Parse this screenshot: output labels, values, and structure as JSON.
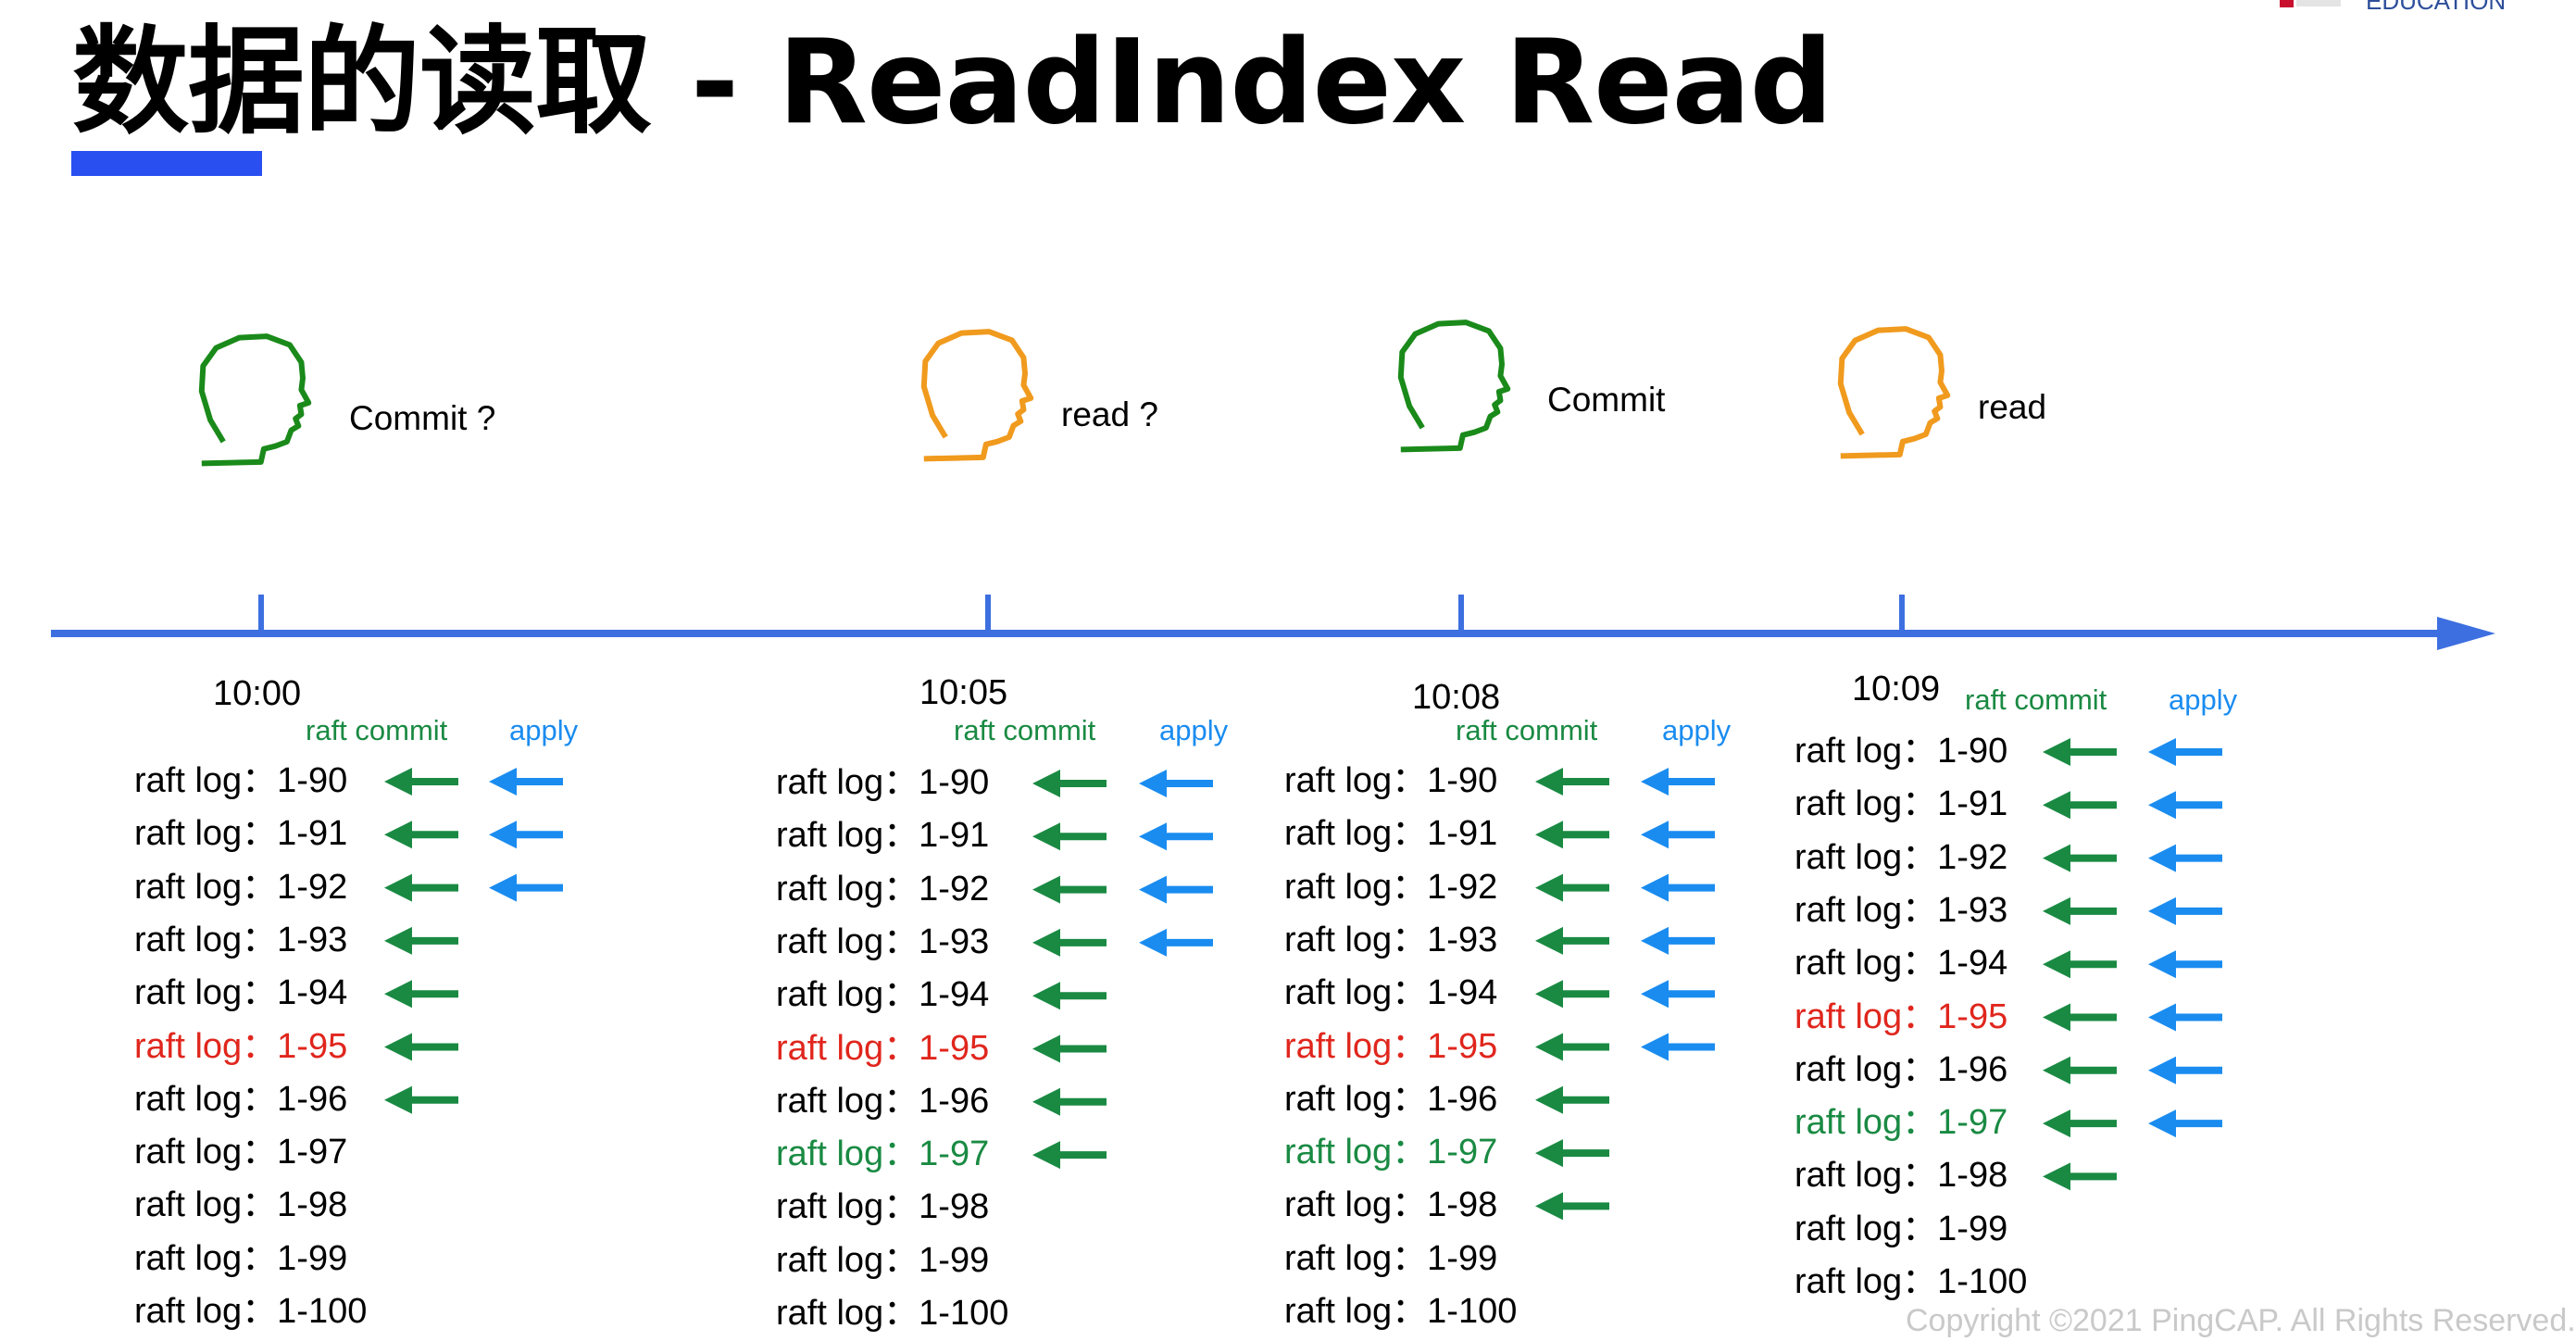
{
  "title": "数据的读取 - ReadIndex Read",
  "copyright": "Copyright ©2021 PingCAP. All Rights Reserved.",
  "colors": {
    "accent": "#2a4ff0",
    "timeline": "#3d6fe0",
    "commit_person": "#1a8a1a",
    "read_person": "#f09a1e",
    "raft_commit": "#1a8a43",
    "apply": "#1a8cf0",
    "highlight_red": "#e0261d",
    "highlight_green": "#1a8a43"
  },
  "headers": {
    "commit": "raft commit",
    "apply": "apply"
  },
  "columns": [
    {
      "time": "10:00",
      "person": {
        "caption": "Commit ?",
        "color": "green"
      },
      "logs": [
        {
          "label": "raft log：1-90",
          "commit": true,
          "apply": true,
          "color": "black"
        },
        {
          "label": "raft log：1-91",
          "commit": true,
          "apply": true,
          "color": "black"
        },
        {
          "label": "raft log：1-92",
          "commit": true,
          "apply": true,
          "color": "black"
        },
        {
          "label": "raft log：1-93",
          "commit": true,
          "apply": false,
          "color": "black"
        },
        {
          "label": "raft log：1-94",
          "commit": true,
          "apply": false,
          "color": "black"
        },
        {
          "label": "raft log：1-95",
          "commit": true,
          "apply": false,
          "color": "red"
        },
        {
          "label": "raft log：1-96",
          "commit": true,
          "apply": false,
          "color": "black"
        },
        {
          "label": "raft log：1-97",
          "commit": false,
          "apply": false,
          "color": "black"
        },
        {
          "label": "raft log：1-98",
          "commit": false,
          "apply": false,
          "color": "black"
        },
        {
          "label": "raft log：1-99",
          "commit": false,
          "apply": false,
          "color": "black"
        },
        {
          "label": "raft log：1-100",
          "commit": false,
          "apply": false,
          "color": "black"
        }
      ]
    },
    {
      "time": "10:05",
      "person": {
        "caption": "read ?",
        "color": "orange"
      },
      "logs": [
        {
          "label": "raft log：1-90",
          "commit": true,
          "apply": true,
          "color": "black"
        },
        {
          "label": "raft log：1-91",
          "commit": true,
          "apply": true,
          "color": "black"
        },
        {
          "label": "raft log：1-92",
          "commit": true,
          "apply": true,
          "color": "black"
        },
        {
          "label": "raft log：1-93",
          "commit": true,
          "apply": true,
          "color": "black"
        },
        {
          "label": "raft log：1-94",
          "commit": true,
          "apply": false,
          "color": "black"
        },
        {
          "label": "raft log：1-95",
          "commit": true,
          "apply": false,
          "color": "red"
        },
        {
          "label": "raft log：1-96",
          "commit": true,
          "apply": false,
          "color": "black"
        },
        {
          "label": "raft log：1-97",
          "commit": true,
          "apply": false,
          "color": "green"
        },
        {
          "label": "raft log：1-98",
          "commit": false,
          "apply": false,
          "color": "black"
        },
        {
          "label": "raft log：1-99",
          "commit": false,
          "apply": false,
          "color": "black"
        },
        {
          "label": "raft log：1-100",
          "commit": false,
          "apply": false,
          "color": "black"
        }
      ]
    },
    {
      "time": "10:08",
      "person": {
        "caption": "Commit",
        "color": "green"
      },
      "logs": [
        {
          "label": "raft log：1-90",
          "commit": true,
          "apply": true,
          "color": "black"
        },
        {
          "label": "raft log：1-91",
          "commit": true,
          "apply": true,
          "color": "black"
        },
        {
          "label": "raft log：1-92",
          "commit": true,
          "apply": true,
          "color": "black"
        },
        {
          "label": "raft log：1-93",
          "commit": true,
          "apply": true,
          "color": "black"
        },
        {
          "label": "raft log：1-94",
          "commit": true,
          "apply": true,
          "color": "black"
        },
        {
          "label": "raft log：1-95",
          "commit": true,
          "apply": true,
          "color": "red"
        },
        {
          "label": "raft log：1-96",
          "commit": true,
          "apply": false,
          "color": "black"
        },
        {
          "label": "raft log：1-97",
          "commit": true,
          "apply": false,
          "color": "green"
        },
        {
          "label": "raft log：1-98",
          "commit": true,
          "apply": false,
          "color": "black"
        },
        {
          "label": "raft log：1-99",
          "commit": false,
          "apply": false,
          "color": "black"
        },
        {
          "label": "raft log：1-100",
          "commit": false,
          "apply": false,
          "color": "black"
        }
      ]
    },
    {
      "time": "10:09",
      "person": {
        "caption": "read",
        "color": "orange"
      },
      "logs": [
        {
          "label": "raft log：1-90",
          "commit": true,
          "apply": true,
          "color": "black"
        },
        {
          "label": "raft log：1-91",
          "commit": true,
          "apply": true,
          "color": "black"
        },
        {
          "label": "raft log：1-92",
          "commit": true,
          "apply": true,
          "color": "black"
        },
        {
          "label": "raft log：1-93",
          "commit": true,
          "apply": true,
          "color": "black"
        },
        {
          "label": "raft log：1-94",
          "commit": true,
          "apply": true,
          "color": "black"
        },
        {
          "label": "raft log：1-95",
          "commit": true,
          "apply": true,
          "color": "red"
        },
        {
          "label": "raft log：1-96",
          "commit": true,
          "apply": true,
          "color": "black"
        },
        {
          "label": "raft log：1-97",
          "commit": true,
          "apply": true,
          "color": "green"
        },
        {
          "label": "raft log：1-98",
          "commit": true,
          "apply": false,
          "color": "black"
        },
        {
          "label": "raft log：1-99",
          "commit": false,
          "apply": false,
          "color": "black"
        },
        {
          "label": "raft log：1-100",
          "commit": false,
          "apply": false,
          "color": "black"
        }
      ]
    }
  ]
}
